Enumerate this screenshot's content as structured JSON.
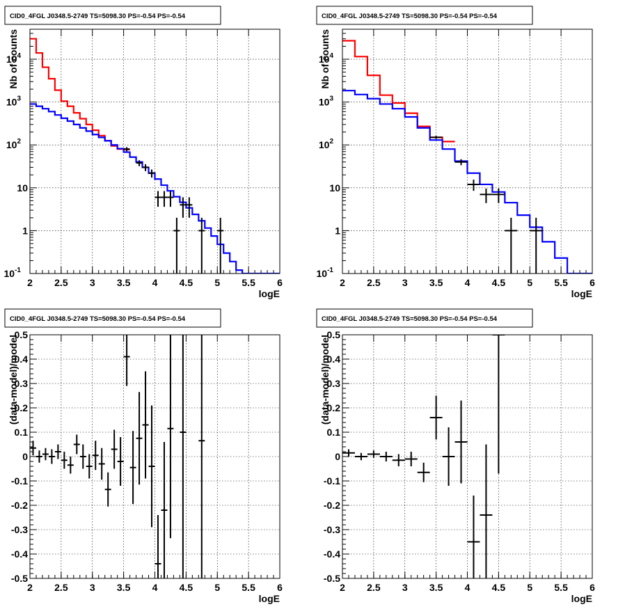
{
  "colors": {
    "data": "#000000",
    "model_total": "#ff0000",
    "model_bkg": "#0000ff",
    "background": "#ffffff"
  },
  "chart_data": [
    {
      "type": "line",
      "title": "CID0_4FGL J0348.5-2749 TS=5098.30 PS=-0.54 PS=-0.54",
      "xlabel": "logE",
      "ylabel": "Nb of counts",
      "xlim": [
        2,
        6
      ],
      "ylim": [
        0.1,
        50000
      ],
      "yscale": "log",
      "grid": true,
      "xticks": [
        "2",
        "2.5",
        "3",
        "3.5",
        "4",
        "4.5",
        "5",
        "5.5",
        "6"
      ],
      "yticks": [
        {
          "label": "10",
          "sup": "-1",
          "value": 0.1
        },
        {
          "label": "1",
          "sup": "",
          "value": 1
        },
        {
          "label": "10",
          "sup": "",
          "value": 10
        },
        {
          "label": "10",
          "sup": "2",
          "value": 100
        },
        {
          "label": "10",
          "sup": "3",
          "value": 1000
        },
        {
          "label": "10",
          "sup": "4",
          "value": 10000
        }
      ],
      "bin_width": 0.1,
      "series": [
        {
          "role": "model_total",
          "x": [
            2.0,
            2.1,
            2.2,
            2.3,
            2.4,
            2.5,
            2.6,
            2.7,
            2.8,
            2.9,
            3.0,
            3.1,
            3.2,
            3.3,
            3.4,
            3.5
          ],
          "y": [
            30000,
            14000,
            6500,
            3500,
            1900,
            1050,
            800,
            560,
            410,
            300,
            220,
            165,
            125,
            95,
            80,
            78
          ]
        },
        {
          "role": "model_bkg",
          "x": [
            2.0,
            2.1,
            2.2,
            2.3,
            2.4,
            2.5,
            2.6,
            2.7,
            2.8,
            2.9,
            3.0,
            3.1,
            3.2,
            3.3,
            3.4,
            3.5,
            3.6,
            3.7,
            3.8,
            3.9,
            4.0,
            4.1,
            4.2,
            4.3,
            4.4,
            4.5,
            4.6,
            4.7,
            4.8,
            4.9,
            5.0,
            5.1,
            5.2,
            5.3,
            5.4,
            5.5,
            5.6,
            5.7,
            5.8,
            5.9
          ],
          "y": [
            900,
            800,
            700,
            600,
            500,
            420,
            360,
            300,
            250,
            210,
            175,
            150,
            125,
            100,
            82,
            68,
            52,
            40,
            30,
            22,
            16,
            11.5,
            8.5,
            6.2,
            4.6,
            3.4,
            2.4,
            1.7,
            1.15,
            0.75,
            0.48,
            0.3,
            0.19,
            0.12,
            0.1,
            0.1,
            0.1,
            0.1,
            0.1,
            0.1
          ]
        },
        {
          "role": "data",
          "x": [
            3.55,
            3.75,
            3.85,
            3.95,
            4.05,
            4.15,
            4.25,
            4.35,
            4.45,
            4.55,
            4.75,
            5.05
          ],
          "y": [
            80,
            38,
            30,
            22,
            6,
            6,
            6,
            1,
            4,
            4,
            1,
            1
          ],
          "err_lo": [
            9,
            6,
            5.5,
            4.7,
            2.4,
            2.4,
            2.4,
            0.99,
            2,
            2,
            0.99,
            0.99
          ],
          "err_hi": [
            9,
            6,
            5.5,
            4.7,
            2.4,
            2.4,
            2.4,
            1.0,
            2,
            2,
            1.0,
            1.0
          ]
        }
      ]
    },
    {
      "type": "line",
      "title": "CID0_4FGL J0348.5-2749 TS=5098.30 PS=-0.54 PS=-0.54",
      "xlabel": "logE",
      "ylabel": "Nb of counts",
      "xlim": [
        2,
        6
      ],
      "ylim": [
        0.1,
        50000
      ],
      "yscale": "log",
      "grid": true,
      "xticks": [
        "2",
        "2.5",
        "3",
        "3.5",
        "4",
        "4.5",
        "5",
        "5.5",
        "6"
      ],
      "yticks": [
        {
          "label": "10",
          "sup": "-1",
          "value": 0.1
        },
        {
          "label": "1",
          "sup": "",
          "value": 1
        },
        {
          "label": "10",
          "sup": "",
          "value": 10
        },
        {
          "label": "10",
          "sup": "2",
          "value": 100
        },
        {
          "label": "10",
          "sup": "3",
          "value": 1000
        },
        {
          "label": "10",
          "sup": "4",
          "value": 10000
        }
      ],
      "bin_width": 0.2,
      "series": [
        {
          "role": "model_total",
          "x": [
            2.0,
            2.2,
            2.4,
            2.6,
            2.8,
            3.0,
            3.2,
            3.4,
            3.6
          ],
          "y": [
            27000,
            11500,
            4200,
            1450,
            950,
            550,
            270,
            150,
            120
          ]
        },
        {
          "role": "model_bkg",
          "x": [
            2.0,
            2.2,
            2.4,
            2.6,
            2.8,
            3.0,
            3.2,
            3.4,
            3.6,
            3.8,
            4.0,
            4.2,
            4.4,
            4.6,
            4.8,
            5.0,
            5.2,
            5.4,
            5.6,
            5.8
          ],
          "y": [
            1850,
            1500,
            1200,
            900,
            700,
            450,
            250,
            130,
            80,
            42,
            22,
            12,
            8,
            4.5,
            2.3,
            1.2,
            0.55,
            0.23,
            0.1,
            0.1
          ]
        },
        {
          "role": "data",
          "x": [
            3.5,
            3.9,
            4.1,
            4.3,
            4.5,
            4.7,
            5.1
          ],
          "y": [
            150,
            40,
            12,
            7,
            7,
            1,
            1
          ],
          "err_lo": [
            12.2,
            6.3,
            3.5,
            2.6,
            2.6,
            0.99,
            0.99
          ],
          "err_hi": [
            12.2,
            6.3,
            3.5,
            2.6,
            2.6,
            1.0,
            1.0
          ]
        }
      ]
    },
    {
      "type": "scatter",
      "title": "CID0_4FGL J0348.5-2749 TS=5098.30 PS=-0.54 PS=-0.54",
      "xlabel": "logE",
      "ylabel": "(data-model)/model",
      "xlim": [
        2,
        6
      ],
      "ylim": [
        -0.5,
        0.5
      ],
      "yscale": "linear",
      "grid": true,
      "xticks": [
        "2",
        "2.5",
        "3",
        "3.5",
        "4",
        "4.5",
        "5",
        "5.5",
        "6"
      ],
      "yticks": [
        {
          "label": "-0.5",
          "sup": "",
          "value": -0.5
        },
        {
          "label": "-0.4",
          "sup": "",
          "value": -0.4
        },
        {
          "label": "-0.3",
          "sup": "",
          "value": -0.3
        },
        {
          "label": "-0.2",
          "sup": "",
          "value": -0.2
        },
        {
          "label": "-0.1",
          "sup": "",
          "value": -0.1
        },
        {
          "label": "0",
          "sup": "",
          "value": 0
        },
        {
          "label": "0.1",
          "sup": "",
          "value": 0.1
        },
        {
          "label": "0.2",
          "sup": "",
          "value": 0.2
        },
        {
          "label": "0.3",
          "sup": "",
          "value": 0.3
        },
        {
          "label": "0.4",
          "sup": "",
          "value": 0.4
        },
        {
          "label": "0.5",
          "sup": "",
          "value": 0.5
        }
      ],
      "bin_width": 0.1,
      "series": [
        {
          "role": "data",
          "x": [
            2.05,
            2.15,
            2.25,
            2.35,
            2.45,
            2.55,
            2.65,
            2.75,
            2.85,
            2.95,
            3.05,
            3.15,
            3.25,
            3.35,
            3.45,
            3.55,
            3.65,
            3.75,
            3.85,
            3.95,
            4.05,
            4.15,
            4.25,
            4.45,
            4.75
          ],
          "y": [
            0.035,
            0.0,
            0.01,
            0.0,
            0.02,
            -0.015,
            -0.035,
            0.05,
            0.0,
            -0.04,
            0.005,
            -0.03,
            -0.135,
            0.03,
            -0.02,
            0.41,
            -0.045,
            0.075,
            0.13,
            -0.04,
            -0.44,
            -0.22,
            0.115,
            0.1,
            0.065
          ],
          "err": [
            0.03,
            0.025,
            0.025,
            0.03,
            0.03,
            0.035,
            0.035,
            0.04,
            0.05,
            0.05,
            0.06,
            0.065,
            0.07,
            0.08,
            0.1,
            0.12,
            0.15,
            0.19,
            0.22,
            0.25,
            0.2,
            0.28,
            0.45,
            0.9,
            1.0
          ]
        }
      ]
    },
    {
      "type": "scatter",
      "title": "CID0_4FGL J0348.5-2749 TS=5098.30 PS=-0.54 PS=-0.54",
      "xlabel": "logE",
      "ylabel": "(data-model)/model",
      "xlim": [
        2,
        6
      ],
      "ylim": [
        -0.5,
        0.5
      ],
      "yscale": "linear",
      "grid": true,
      "xticks": [
        "2",
        "2.5",
        "3",
        "3.5",
        "4",
        "4.5",
        "5",
        "5.5",
        "6"
      ],
      "yticks": [
        {
          "label": "-0.5",
          "sup": "",
          "value": -0.5
        },
        {
          "label": "-0.4",
          "sup": "",
          "value": -0.4
        },
        {
          "label": "-0.3",
          "sup": "",
          "value": -0.3
        },
        {
          "label": "-0.2",
          "sup": "",
          "value": -0.2
        },
        {
          "label": "-0.1",
          "sup": "",
          "value": -0.1
        },
        {
          "label": "0",
          "sup": "",
          "value": 0
        },
        {
          "label": "0.1",
          "sup": "",
          "value": 0.1
        },
        {
          "label": "0.2",
          "sup": "",
          "value": 0.2
        },
        {
          "label": "0.3",
          "sup": "",
          "value": 0.3
        },
        {
          "label": "0.4",
          "sup": "",
          "value": 0.4
        },
        {
          "label": "0.5",
          "sup": "",
          "value": 0.5
        }
      ],
      "bin_width": 0.2,
      "series": [
        {
          "role": "data",
          "x": [
            2.1,
            2.3,
            2.5,
            2.7,
            2.9,
            3.1,
            3.3,
            3.5,
            3.7,
            3.9,
            4.1,
            4.3,
            4.5
          ],
          "y": [
            0.015,
            0.0,
            0.01,
            0.0,
            -0.015,
            -0.01,
            -0.065,
            0.16,
            0.0,
            0.06,
            -0.35,
            -0.24,
            0.5
          ],
          "err": [
            0.015,
            0.015,
            0.015,
            0.02,
            0.025,
            0.03,
            0.04,
            0.09,
            0.12,
            0.17,
            0.19,
            0.29,
            0.57
          ]
        }
      ]
    }
  ]
}
